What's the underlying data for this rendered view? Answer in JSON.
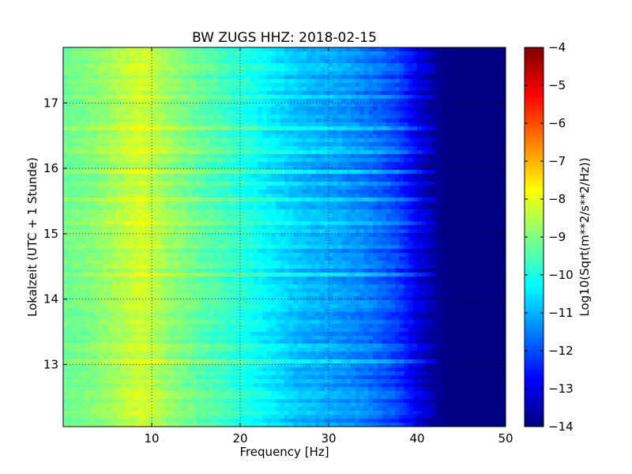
{
  "chart_data": {
    "type": "heatmap",
    "title": "BW ZUGS HHZ: 2018-02-15",
    "xlabel": "Frequency [Hz]",
    "ylabel": "Lokalzeit (UTC + 1 Stunde)",
    "xlim": [
      0,
      50
    ],
    "ylim": [
      17.85,
      12.05
    ],
    "x_ticks": [
      "10",
      "20",
      "30",
      "40",
      "50"
    ],
    "x_tick_values": [
      10,
      20,
      30,
      40,
      50
    ],
    "y_ticks": [
      "13",
      "14",
      "15",
      "16",
      "17"
    ],
    "y_tick_values": [
      13,
      14,
      15,
      16,
      17
    ],
    "grid": true,
    "colormap": "jet",
    "colorbar": {
      "label": "Log10(Sqrt(m**2/s**2/Hz))",
      "range": [
        -14,
        -4
      ],
      "ticks": [
        "−4",
        "−5",
        "−6",
        "−7",
        "−8",
        "−9",
        "−10",
        "−11",
        "−12",
        "−13",
        "−14"
      ],
      "tick_values": [
        -4,
        -5,
        -6,
        -7,
        -8,
        -9,
        -10,
        -11,
        -12,
        -13,
        -14
      ]
    },
    "spectrum_profile": {
      "frequency_hz": [
        0,
        2,
        4,
        6,
        8,
        9,
        10,
        12,
        14,
        16,
        18,
        20,
        22,
        24,
        26,
        28,
        30,
        32,
        34,
        36,
        38,
        39,
        40,
        41,
        42,
        43,
        44,
        46,
        48,
        50
      ],
      "log10_amplitude": [
        -9.2,
        -9.1,
        -8.9,
        -8.6,
        -8.3,
        -8.2,
        -8.4,
        -8.8,
        -9.1,
        -9.4,
        -9.6,
        -9.9,
        -10.2,
        -10.5,
        -10.8,
        -11.0,
        -11.1,
        -11.3,
        -11.5,
        -11.8,
        -12.2,
        -12.6,
        -13.0,
        -13.4,
        -13.7,
        -13.9,
        -14.0,
        -14.0,
        -14.0,
        -14.0
      ]
    }
  }
}
